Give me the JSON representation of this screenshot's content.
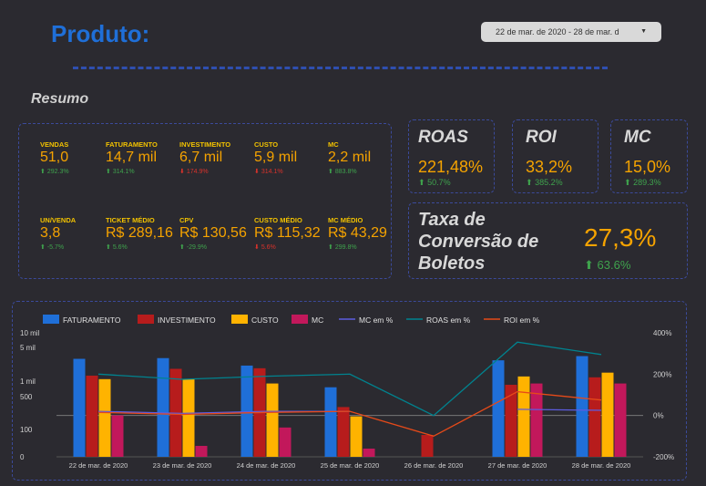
{
  "header": {
    "title": "Produto:",
    "date_range": "22 de mar. de 2020 - 28 de mar. d",
    "section": "Resumo"
  },
  "metrics": [
    {
      "label": "VENDAS",
      "value": "51,0",
      "change": "292.3%",
      "dir": "up"
    },
    {
      "label": "FATURAMENTO",
      "value": "14,7 mil",
      "change": "314.1%",
      "dir": "up"
    },
    {
      "label": "INVESTIMENTO",
      "value": "6,7 mil",
      "change": "174.9%",
      "dir": "down"
    },
    {
      "label": "CUSTO",
      "value": "5,9 mil",
      "change": "314.1%",
      "dir": "down"
    },
    {
      "label": "MC",
      "value": "2,2 mil",
      "change": "883.8%",
      "dir": "up"
    },
    {
      "label": "UN/VENDA",
      "value": "3,8",
      "change": "-5.7%",
      "dir": "up"
    },
    {
      "label": "TICKET MÉDIO",
      "value": "R$ 289,16",
      "change": "5.6%",
      "dir": "up"
    },
    {
      "label": "CPV",
      "value": "R$ 130,56",
      "change": "-29.9%",
      "dir": "up"
    },
    {
      "label": "CUSTO MÉDIO",
      "value": "R$ 115,32",
      "change": "5.6%",
      "dir": "down"
    },
    {
      "label": "MC MÉDIO",
      "value": "R$ 43,29",
      "change": "299.8%",
      "dir": "up"
    }
  ],
  "kpis": {
    "roas": {
      "title": "ROAS",
      "value": "221,48%",
      "change": "50.7%"
    },
    "roi": {
      "title": "ROI",
      "value": "33,2%",
      "change": "385.2%"
    },
    "mc": {
      "title": "MC",
      "value": "15,0%",
      "change": "289.3%"
    },
    "boletos": {
      "title_1": "Taxa de",
      "title_2": "Conversão de",
      "title_3": "Boletos",
      "value": "27,3%",
      "change": "63.6%"
    }
  },
  "colors": {
    "faturamento": "#1f6fd8",
    "investimento": "#b71c1c",
    "custo": "#ffb300",
    "mc": "#c2185b",
    "mc_pct": "#5c5ce0",
    "roas_pct": "#00838f",
    "roi_pct": "#e64a19"
  },
  "chart_data": {
    "type": "bar",
    "categories": [
      "22 de mar. de 2020",
      "23 de mar. de 2020",
      "24 de mar. de 2020",
      "25 de mar. de 2020",
      "26 de mar. de 2020",
      "27 de mar. de 2020",
      "28 de mar. de 2020"
    ],
    "y_left_ticks": [
      "0",
      "100",
      "500",
      "1 mil",
      "5 mil",
      "10 mil"
    ],
    "y_right_ticks": [
      "-200%",
      "0%",
      "200%",
      "400%"
    ],
    "y_right_range": [
      -200,
      400
    ],
    "scale_left": "log",
    "series": [
      {
        "name": "FATURAMENTO",
        "kind": "bar",
        "values": [
          2900,
          3000,
          2100,
          760,
          0,
          2700,
          3300
        ]
      },
      {
        "name": "INVESTIMENTO",
        "kind": "bar",
        "values": [
          1300,
          1800,
          1850,
          300,
          80,
          850,
          1200
        ]
      },
      {
        "name": "CUSTO",
        "kind": "bar",
        "values": [
          1100,
          1100,
          900,
          190,
          0,
          1250,
          1500
        ]
      },
      {
        "name": "MC",
        "kind": "bar",
        "values": [
          200,
          40,
          110,
          30,
          0,
          900,
          900
        ]
      },
      {
        "name": "MC em %",
        "kind": "line",
        "values": [
          20,
          10,
          20,
          20,
          null,
          30,
          25
        ]
      },
      {
        "name": "ROAS em %",
        "kind": "line",
        "values": [
          200,
          175,
          190,
          200,
          0,
          355,
          295
        ]
      },
      {
        "name": "ROI em %",
        "kind": "line",
        "values": [
          15,
          5,
          15,
          20,
          -100,
          115,
          75
        ]
      }
    ]
  }
}
